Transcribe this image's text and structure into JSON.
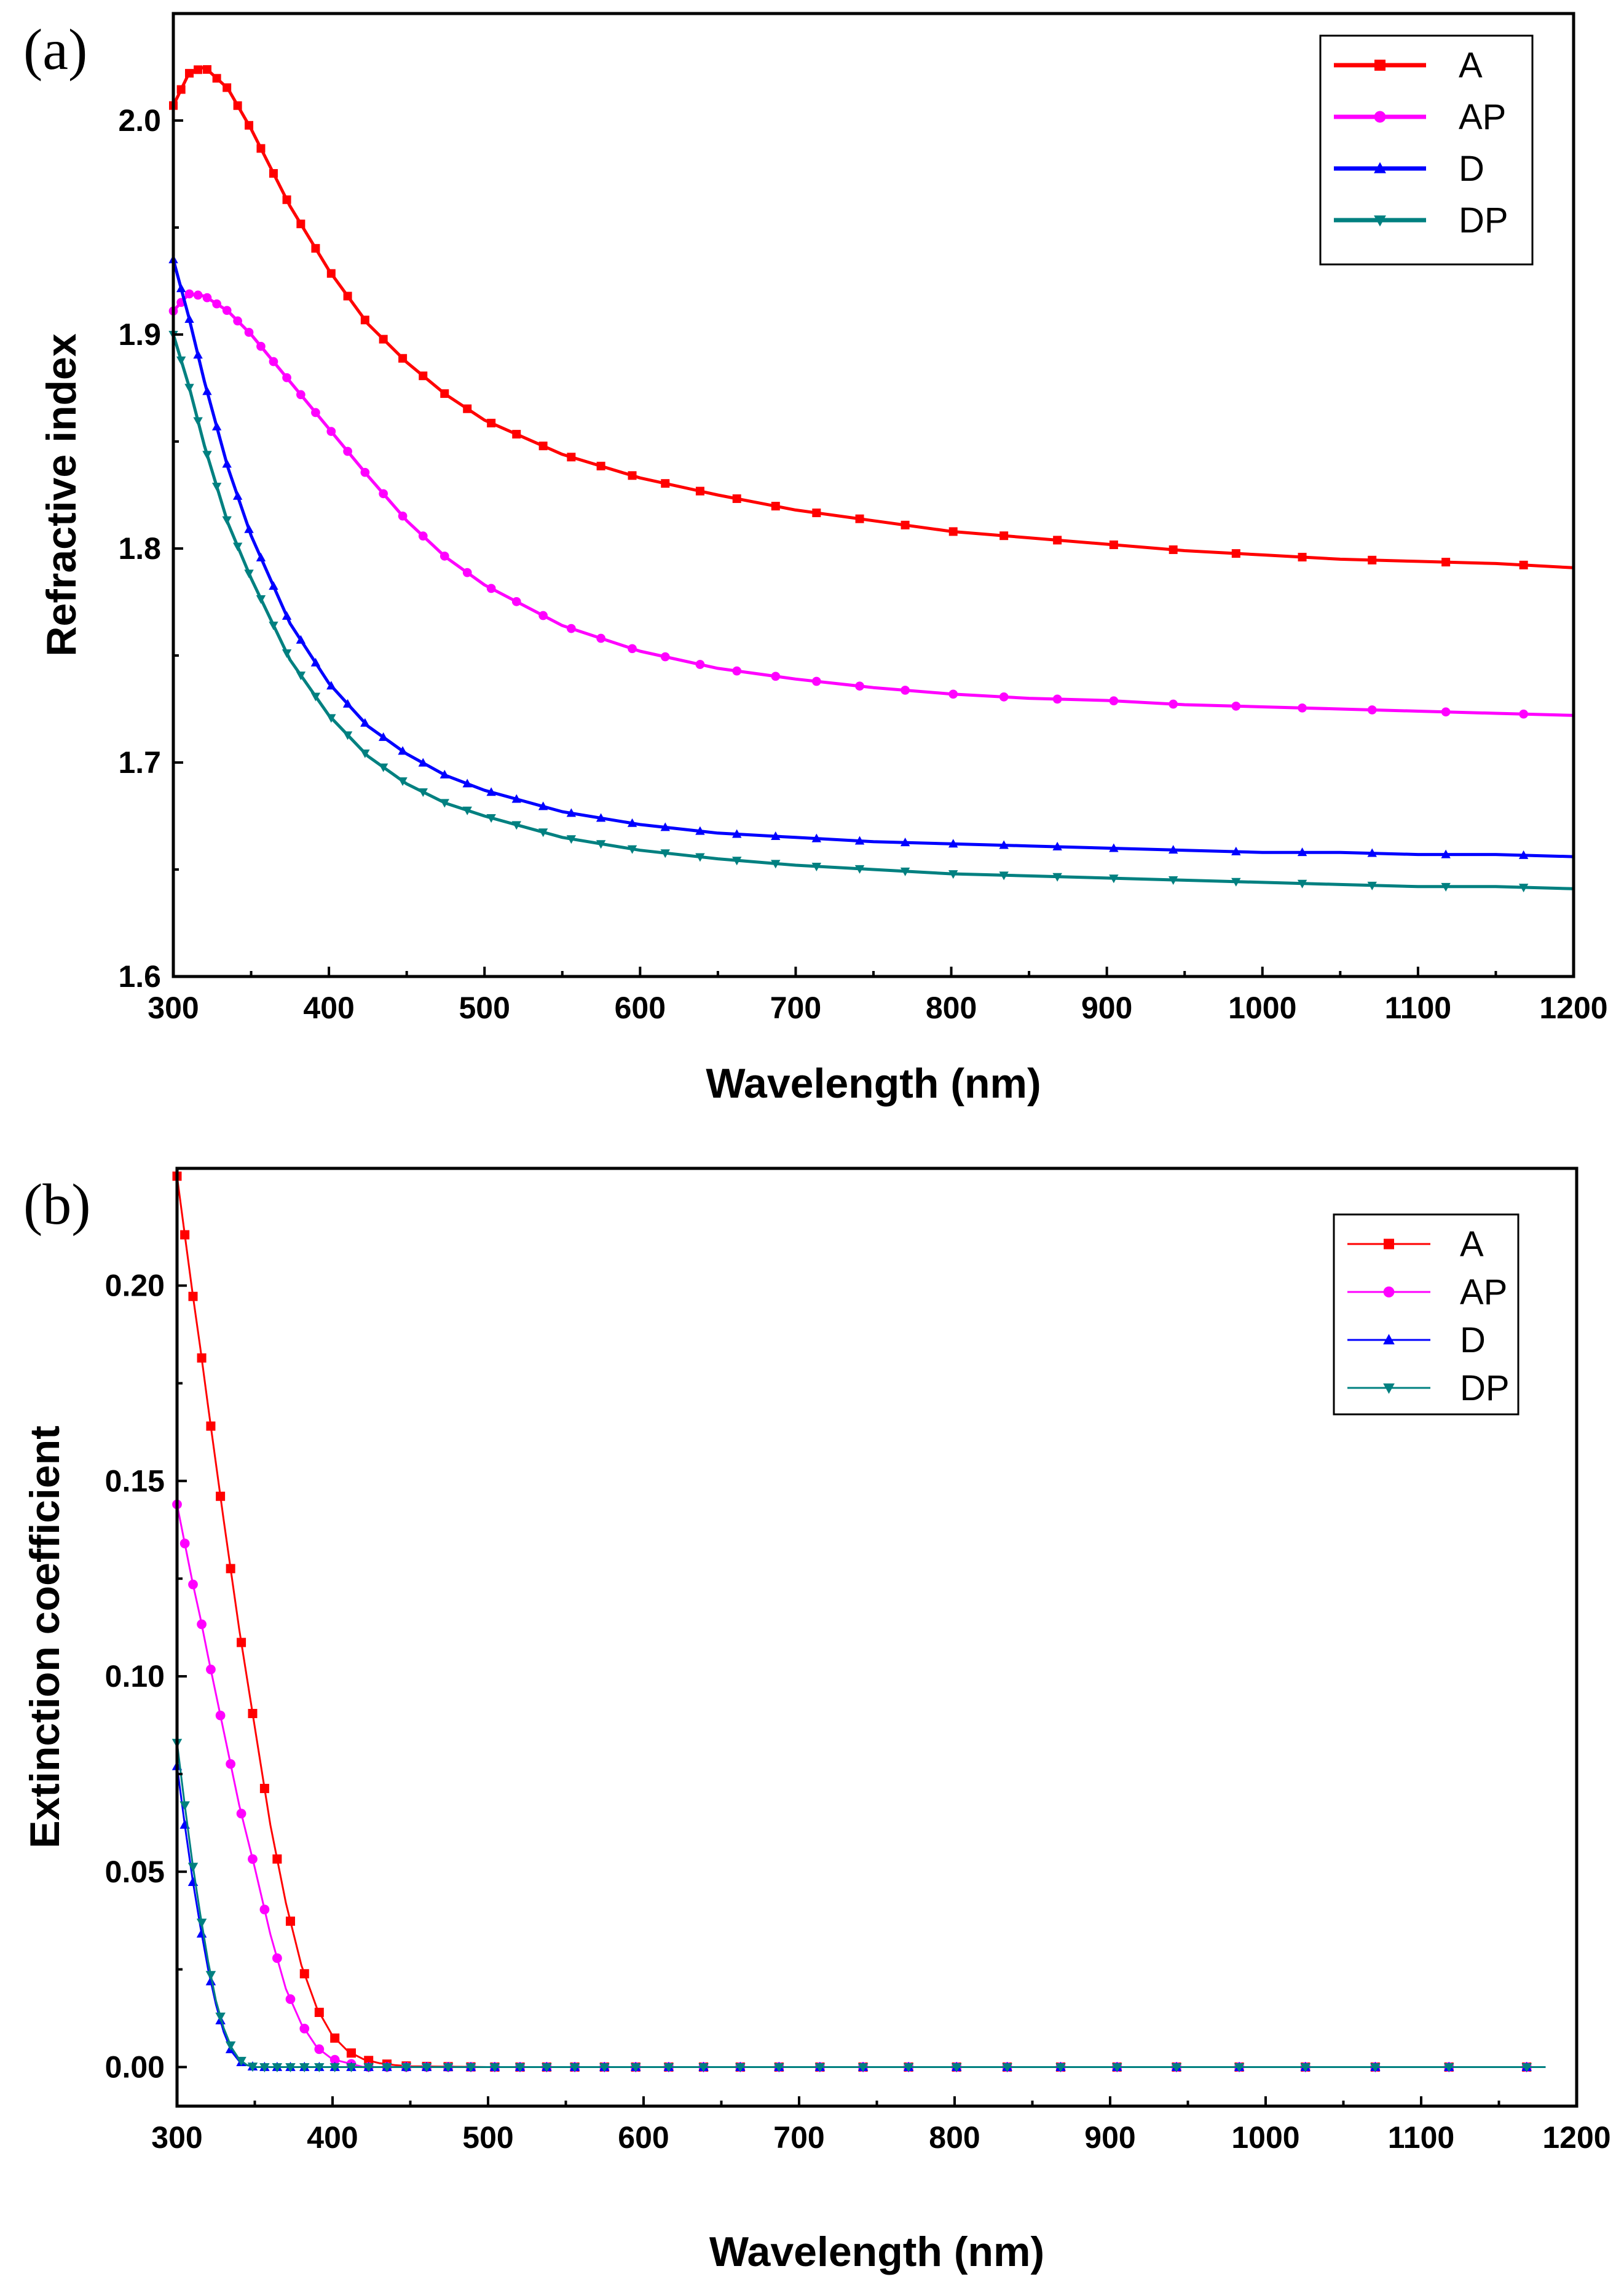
{
  "chart_data": [
    {
      "type": "line",
      "panel_label": "(a)",
      "xlabel": "Wavelength (nm)",
      "ylabel": "Refractive index",
      "xlim": [
        300,
        1200
      ],
      "ylim": [
        1.6,
        2.05
      ],
      "xticks": [
        300,
        400,
        500,
        600,
        700,
        800,
        900,
        1000,
        1100,
        1200
      ],
      "xtick_labels": [
        "300",
        "400",
        "500",
        "600",
        "700",
        "800",
        "900",
        "1000",
        "1100",
        "1200"
      ],
      "yticks": [
        1.6,
        1.7,
        1.8,
        1.9,
        2.0
      ],
      "ytick_labels": [
        "1.6",
        "1.7",
        "1.8",
        "1.9",
        "2.0"
      ],
      "legend_position": "top-right",
      "series": [
        {
          "name": "A",
          "color": "#ff0000",
          "marker": "square",
          "points": [
            [
              300,
              2.007
            ],
            [
              310,
              2.022
            ],
            [
              320,
              2.025
            ],
            [
              335,
              2.015
            ],
            [
              350,
              1.996
            ],
            [
              375,
              1.96
            ],
            [
              400,
              1.93
            ],
            [
              425,
              1.905
            ],
            [
              450,
              1.887
            ],
            [
              475,
              1.872
            ],
            [
              500,
              1.86
            ],
            [
              550,
              1.844
            ],
            [
              600,
              1.833
            ],
            [
              650,
              1.825
            ],
            [
              700,
              1.818
            ],
            [
              750,
              1.813
            ],
            [
              800,
              1.808
            ],
            [
              850,
              1.805
            ],
            [
              900,
              1.802
            ],
            [
              950,
              1.799
            ],
            [
              1000,
              1.797
            ],
            [
              1050,
              1.795
            ],
            [
              1100,
              1.794
            ],
            [
              1150,
              1.793
            ],
            [
              1200,
              1.791
            ]
          ]
        },
        {
          "name": "AP",
          "color": "#ff00ff",
          "marker": "circle",
          "points": [
            [
              300,
              1.911
            ],
            [
              310,
              1.919
            ],
            [
              320,
              1.918
            ],
            [
              335,
              1.911
            ],
            [
              350,
              1.9
            ],
            [
              375,
              1.878
            ],
            [
              400,
              1.856
            ],
            [
              425,
              1.834
            ],
            [
              450,
              1.813
            ],
            [
              475,
              1.796
            ],
            [
              500,
              1.783
            ],
            [
              550,
              1.764
            ],
            [
              600,
              1.752
            ],
            [
              650,
              1.744
            ],
            [
              700,
              1.739
            ],
            [
              750,
              1.735
            ],
            [
              800,
              1.732
            ],
            [
              850,
              1.73
            ],
            [
              900,
              1.729
            ],
            [
              950,
              1.727
            ],
            [
              1000,
              1.726
            ],
            [
              1050,
              1.725
            ],
            [
              1100,
              1.724
            ],
            [
              1150,
              1.723
            ],
            [
              1200,
              1.722
            ]
          ]
        },
        {
          "name": "D",
          "color": "#0000ff",
          "marker": "triangle-up",
          "points": [
            [
              300,
              1.935
            ],
            [
              310,
              1.908
            ],
            [
              320,
              1.878
            ],
            [
              335,
              1.838
            ],
            [
              350,
              1.806
            ],
            [
              375,
              1.765
            ],
            [
              400,
              1.737
            ],
            [
              425,
              1.717
            ],
            [
              450,
              1.704
            ],
            [
              475,
              1.694
            ],
            [
              500,
              1.687
            ],
            [
              550,
              1.677
            ],
            [
              600,
              1.671
            ],
            [
              650,
              1.667
            ],
            [
              700,
              1.665
            ],
            [
              750,
              1.663
            ],
            [
              800,
              1.662
            ],
            [
              850,
              1.661
            ],
            [
              900,
              1.66
            ],
            [
              950,
              1.659
            ],
            [
              1000,
              1.658
            ],
            [
              1050,
              1.658
            ],
            [
              1100,
              1.657
            ],
            [
              1150,
              1.657
            ],
            [
              1200,
              1.656
            ]
          ]
        },
        {
          "name": "DP",
          "color": "#008080",
          "marker": "triangle-down",
          "points": [
            [
              300,
              1.9
            ],
            [
              310,
              1.876
            ],
            [
              320,
              1.848
            ],
            [
              335,
              1.812
            ],
            [
              350,
              1.786
            ],
            [
              375,
              1.748
            ],
            [
              400,
              1.722
            ],
            [
              425,
              1.703
            ],
            [
              450,
              1.69
            ],
            [
              475,
              1.681
            ],
            [
              500,
              1.675
            ],
            [
              550,
              1.665
            ],
            [
              600,
              1.659
            ],
            [
              650,
              1.655
            ],
            [
              700,
              1.652
            ],
            [
              750,
              1.65
            ],
            [
              800,
              1.648
            ],
            [
              850,
              1.647
            ],
            [
              900,
              1.646
            ],
            [
              950,
              1.645
            ],
            [
              1000,
              1.644
            ],
            [
              1050,
              1.643
            ],
            [
              1100,
              1.642
            ],
            [
              1150,
              1.642
            ],
            [
              1200,
              1.641
            ]
          ]
        }
      ]
    },
    {
      "type": "line",
      "panel_label": "(b)",
      "xlabel": "Wavelength (nm)",
      "ylabel": "Extinction coefficient",
      "xlim": [
        300,
        1200
      ],
      "ylim": [
        -0.01,
        0.23
      ],
      "xticks": [
        300,
        400,
        500,
        600,
        700,
        800,
        900,
        1000,
        1100,
        1200
      ],
      "xtick_labels": [
        "300",
        "400",
        "500",
        "600",
        "700",
        "800",
        "900",
        "1000",
        "1100",
        "1200"
      ],
      "yticks": [
        0.0,
        0.05,
        0.1,
        0.15,
        0.2
      ],
      "ytick_labels": [
        "0.00",
        "0.05",
        "0.10",
        "0.15",
        "0.20"
      ],
      "legend_position": "top-right",
      "series": [
        {
          "name": "A",
          "color": "#ff0000",
          "marker": "square",
          "points": [
            [
              300,
              0.228
            ],
            [
              305,
              0.213
            ],
            [
              310,
              0.198
            ],
            [
              315,
              0.184
            ],
            [
              320,
              0.169
            ],
            [
              330,
              0.14
            ],
            [
              340,
              0.112
            ],
            [
              350,
              0.087
            ],
            [
              360,
              0.062
            ],
            [
              370,
              0.042
            ],
            [
              380,
              0.026
            ],
            [
              390,
              0.015
            ],
            [
              400,
              0.008
            ],
            [
              410,
              0.004
            ],
            [
              420,
              0.002
            ],
            [
              430,
              0.001
            ],
            [
              440,
              0.0005
            ],
            [
              450,
              0.0002
            ],
            [
              500,
              0.0
            ],
            [
              600,
              0.0
            ],
            [
              700,
              0.0
            ],
            [
              800,
              0.0
            ],
            [
              900,
              0.0
            ],
            [
              1000,
              0.0
            ],
            [
              1100,
              0.0
            ],
            [
              1180,
              0.0
            ]
          ]
        },
        {
          "name": "AP",
          "color": "#ff00ff",
          "marker": "circle",
          "points": [
            [
              300,
              0.144
            ],
            [
              305,
              0.134
            ],
            [
              310,
              0.124
            ],
            [
              315,
              0.115
            ],
            [
              320,
              0.105
            ],
            [
              330,
              0.086
            ],
            [
              340,
              0.067
            ],
            [
              350,
              0.051
            ],
            [
              360,
              0.034
            ],
            [
              370,
              0.02
            ],
            [
              380,
              0.011
            ],
            [
              390,
              0.005
            ],
            [
              400,
              0.002
            ],
            [
              410,
              0.001
            ],
            [
              420,
              0.0
            ],
            [
              500,
              0.0
            ],
            [
              600,
              0.0
            ],
            [
              700,
              0.0
            ],
            [
              800,
              0.0
            ],
            [
              900,
              0.0
            ],
            [
              1000,
              0.0
            ],
            [
              1100,
              0.0
            ],
            [
              1180,
              0.0
            ]
          ]
        },
        {
          "name": "D",
          "color": "#0000ff",
          "marker": "triangle-up",
          "points": [
            [
              300,
              0.077
            ],
            [
              305,
              0.062
            ],
            [
              310,
              0.048
            ],
            [
              315,
              0.036
            ],
            [
              320,
              0.025
            ],
            [
              325,
              0.016
            ],
            [
              330,
              0.009
            ],
            [
              335,
              0.004
            ],
            [
              340,
              0.0015
            ],
            [
              345,
              0.0005
            ],
            [
              350,
              0.0
            ],
            [
              400,
              0.0
            ],
            [
              500,
              0.0
            ],
            [
              600,
              0.0
            ],
            [
              700,
              0.0
            ],
            [
              800,
              0.0
            ],
            [
              900,
              0.0
            ],
            [
              1000,
              0.0
            ],
            [
              1100,
              0.0
            ],
            [
              1180,
              0.0
            ]
          ]
        },
        {
          "name": "DP",
          "color": "#008080",
          "marker": "triangle-down",
          "points": [
            [
              300,
              0.083
            ],
            [
              305,
              0.067
            ],
            [
              310,
              0.052
            ],
            [
              315,
              0.039
            ],
            [
              320,
              0.027
            ],
            [
              325,
              0.017
            ],
            [
              330,
              0.01
            ],
            [
              335,
              0.005
            ],
            [
              340,
              0.002
            ],
            [
              345,
              0.0005
            ],
            [
              350,
              0.0
            ],
            [
              400,
              0.0
            ],
            [
              500,
              0.0
            ],
            [
              600,
              0.0
            ],
            [
              700,
              0.0
            ],
            [
              800,
              0.0
            ],
            [
              900,
              0.0
            ],
            [
              1000,
              0.0
            ],
            [
              1100,
              0.0
            ],
            [
              1180,
              0.0
            ]
          ]
        }
      ]
    }
  ]
}
